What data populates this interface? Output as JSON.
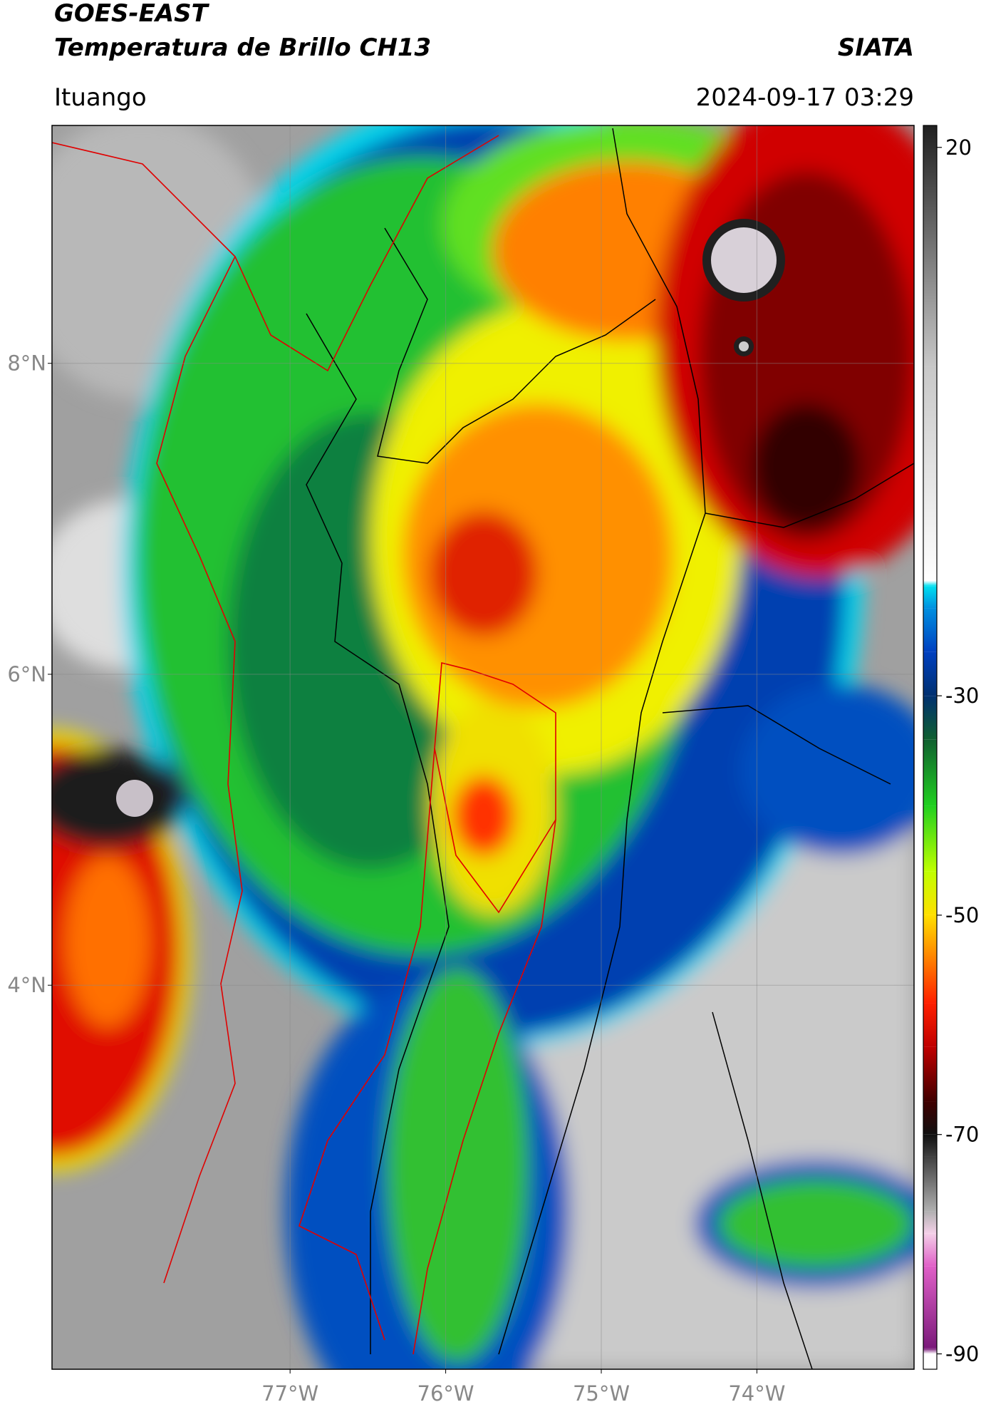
{
  "header": {
    "title": "GOES-EAST",
    "subtitle": "Temperatura de Brillo CH13",
    "source": "SIATA",
    "location": "Ituango",
    "timestamp": "2024-09-17 03:29"
  },
  "map": {
    "lonlim": [
      -78.53,
      -72.99
    ],
    "latlim": [
      1.53,
      9.53
    ],
    "grid": true,
    "lon_ticks": [
      {
        "value": -77,
        "label": "77°W"
      },
      {
        "value": -76,
        "label": "76°W"
      },
      {
        "value": -75,
        "label": "75°W"
      },
      {
        "value": -74,
        "label": "74°W"
      }
    ],
    "lat_ticks": [
      {
        "value": 8,
        "label": "8°N"
      },
      {
        "value": 6,
        "label": "6°N"
      },
      {
        "value": 4,
        "label": "4°N"
      }
    ]
  },
  "colorbar": {
    "lim": [
      -91.4,
      22
    ],
    "ticks": [
      20,
      -30,
      -50,
      -70,
      -90
    ],
    "colormap": [
      {
        "value": -91.4,
        "color": "#ffffff"
      },
      {
        "value": -90,
        "color": "#ffffff"
      },
      {
        "value": -89.5,
        "color": "#7a1a7a"
      },
      {
        "value": -82,
        "color": "#e060c8"
      },
      {
        "value": -79,
        "color": "#f4d0e8"
      },
      {
        "value": -77,
        "color": "#b0b0b0"
      },
      {
        "value": -72,
        "color": "#404040"
      },
      {
        "value": -70,
        "color": "#101010"
      },
      {
        "value": -67,
        "color": "#400000"
      },
      {
        "value": -62,
        "color": "#c00000"
      },
      {
        "value": -58,
        "color": "#ff2000"
      },
      {
        "value": -54,
        "color": "#ff8000"
      },
      {
        "value": -50,
        "color": "#ffe000"
      },
      {
        "value": -46,
        "color": "#c0ff00"
      },
      {
        "value": -40,
        "color": "#20d020"
      },
      {
        "value": -34,
        "color": "#106030"
      },
      {
        "value": -30,
        "color": "#003070"
      },
      {
        "value": -26,
        "color": "#0040c0"
      },
      {
        "value": -22,
        "color": "#0090e0"
      },
      {
        "value": -20,
        "color": "#00e0f0"
      },
      {
        "value": -19.5,
        "color": "#ffffff"
      },
      {
        "value": 0,
        "color": "#c8c8c8"
      },
      {
        "value": 22,
        "color": "#202020"
      }
    ]
  }
}
